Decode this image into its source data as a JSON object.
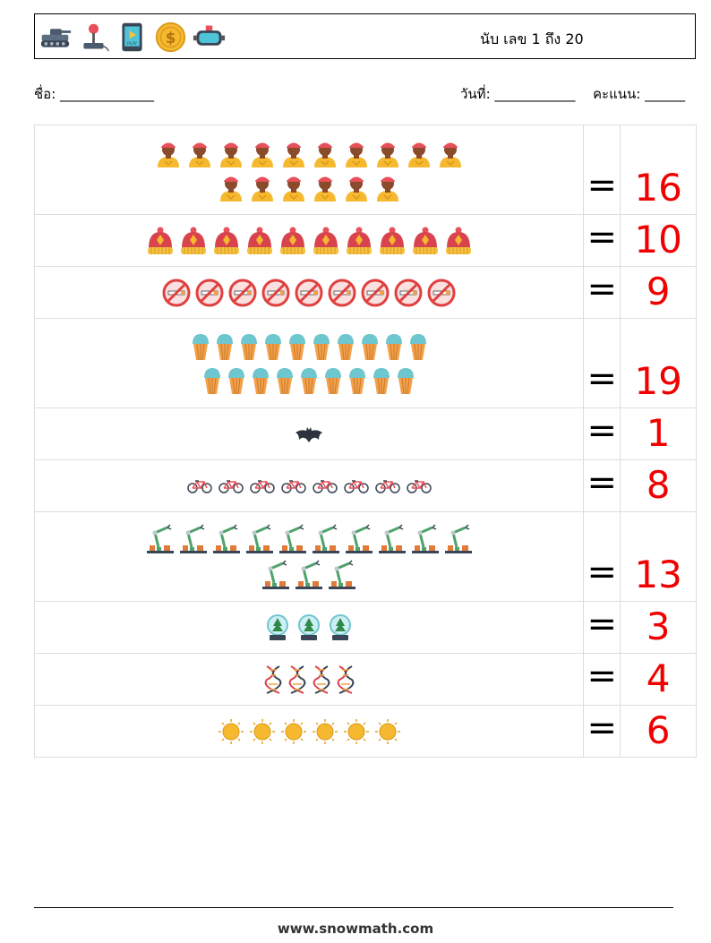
{
  "header": {
    "icons": [
      "tank-icon",
      "joystick-icon",
      "play-tablet-icon",
      "dollar-coin-icon",
      "vr-headset-icon"
    ],
    "title": "นับ เลข 1 ถึง 20"
  },
  "info": {
    "name_label": "ชื่อ:",
    "name_blank": "______________",
    "date_label": "วันที่:",
    "date_blank": "____________",
    "score_label": "คะแนน:",
    "score_blank": "______"
  },
  "rows": [
    {
      "icon": "worker-person-icon",
      "count": 16,
      "equals": "=",
      "answer": "16"
    },
    {
      "icon": "knit-hat-icon",
      "count": 10,
      "equals": "=",
      "answer": "10"
    },
    {
      "icon": "no-smoking-icon",
      "count": 9,
      "equals": "=",
      "answer": "9"
    },
    {
      "icon": "ice-cream-cone-icon",
      "count": 19,
      "equals": "=",
      "answer": "19"
    },
    {
      "icon": "bat-icon",
      "count": 1,
      "equals": "=",
      "answer": "1"
    },
    {
      "icon": "bicycle-icon",
      "count": 8,
      "equals": "=",
      "answer": "8"
    },
    {
      "icon": "robot-arm-icon",
      "count": 13,
      "equals": "=",
      "answer": "13"
    },
    {
      "icon": "snow-globe-icon",
      "count": 3,
      "equals": "=",
      "answer": "3"
    },
    {
      "icon": "dna-icon",
      "count": 4,
      "equals": "=",
      "answer": "4"
    },
    {
      "icon": "sun-icon",
      "count": 6,
      "equals": "=",
      "answer": "6"
    }
  ],
  "colors": {
    "answer": "#f00000",
    "border": "#dddddd"
  },
  "footer": {
    "url": "www.snowmath.com"
  }
}
